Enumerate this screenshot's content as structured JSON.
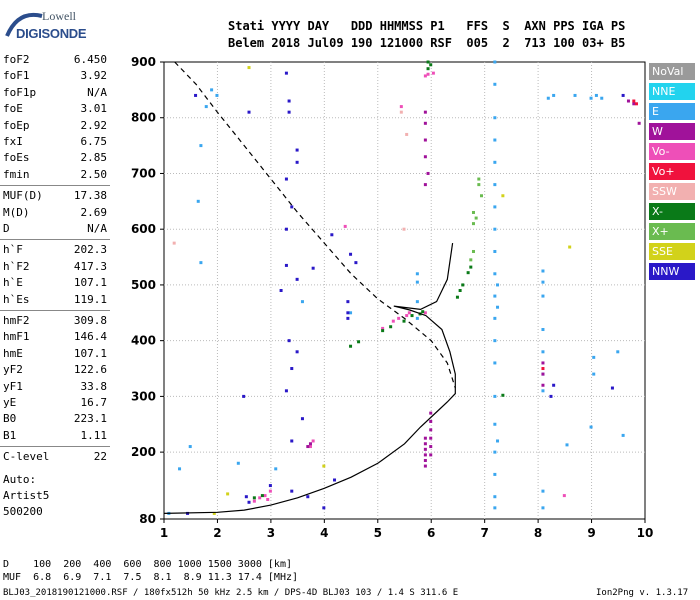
{
  "logo": {
    "top": "Lowell",
    "bottom": "DIGISONDE"
  },
  "header": {
    "line1": "Stati YYYY DAY   DDD HHMMSS P1   FFS  S  AXN PPS IGA PS",
    "line2": "Belem 2018 Jul09 190 121000 RSF  005  2  713 100 03+ B5"
  },
  "params": [
    {
      "label": "foF2",
      "value": "6.450"
    },
    {
      "label": "foF1",
      "value": "3.92"
    },
    {
      "label": "foF1p",
      "value": "N/A"
    },
    {
      "label": "foE",
      "value": "3.01"
    },
    {
      "label": "foEp",
      "value": "2.92"
    },
    {
      "label": "fxI",
      "value": "6.75"
    },
    {
      "label": "foEs",
      "value": "2.85"
    },
    {
      "label": "fmin",
      "value": "2.50"
    },
    {
      "label": "MUF(D)",
      "value": "17.38"
    },
    {
      "label": "M(D)",
      "value": "2.69"
    },
    {
      "label": "D",
      "value": "N/A"
    },
    {
      "label": "h`F",
      "value": "202.3"
    },
    {
      "label": "h`F2",
      "value": "417.3"
    },
    {
      "label": "h`E",
      "value": "107.1"
    },
    {
      "label": "h`Es",
      "value": "119.1"
    },
    {
      "label": "hmF2",
      "value": "309.8"
    },
    {
      "label": "hmF1",
      "value": "146.4"
    },
    {
      "label": "hmE",
      "value": "107.1"
    },
    {
      "label": "yF2",
      "value": "122.6"
    },
    {
      "label": "yF1",
      "value": "33.8"
    },
    {
      "label": "yE",
      "value": "16.7"
    },
    {
      "label": "B0",
      "value": "223.1"
    },
    {
      "label": "B1",
      "value": "1.11"
    },
    {
      "label": "C-level",
      "value": "22"
    }
  ],
  "auto": {
    "label": "Auto:",
    "system": "Artist5",
    "version": "500200"
  },
  "legend": [
    {
      "label": "NoVal",
      "color": "#9a9a9a"
    },
    {
      "label": "NNE",
      "color": "#22d3ee"
    },
    {
      "label": "E",
      "color": "#3aa6ef"
    },
    {
      "label": "W",
      "color": "#a0129a"
    },
    {
      "label": "Vo-",
      "color": "#ee4fb8"
    },
    {
      "label": "Vo+",
      "color": "#f0123d"
    },
    {
      "label": "SSW",
      "color": "#f2b0b0"
    },
    {
      "label": "X-",
      "color": "#0a7a18"
    },
    {
      "label": "X+",
      "color": "#6abb50"
    },
    {
      "label": "SSE",
      "color": "#d2d21a"
    },
    {
      "label": "NNW",
      "color": "#2a18c8"
    }
  ],
  "footer": {
    "d_row": "D    100  200  400  600  800 1000 1500 3000 [km]",
    "muf_row": "MUF  6.8  6.9  7.1  7.5  8.1  8.9 11.3 17.4 [MHz]",
    "file_line": "BLJ03_2018190121000.RSF / 180fx512h 50 kHz 2.5 km / DPS-4D BLJ03 103 / 1.4 S 311.6 E",
    "version": "Ion2Png v. 1.3.17"
  },
  "chart_data": {
    "type": "scatter",
    "title": "",
    "xlabel": "",
    "ylabel": "",
    "xlim": [
      1,
      10
    ],
    "ylim": [
      80,
      900
    ],
    "x_ticks": [
      1,
      2,
      3,
      4,
      5,
      6,
      7,
      8,
      9,
      10
    ],
    "y_ticks": [
      80,
      200,
      300,
      400,
      500,
      600,
      700,
      800,
      900
    ],
    "grid": true,
    "legend_position": "right",
    "ntrace": {
      "name": "",
      "style": "solid",
      "points": [
        [
          1.0,
          90
        ],
        [
          2.0,
          92
        ],
        [
          2.5,
          96
        ],
        [
          3.0,
          105
        ],
        [
          3.5,
          118
        ],
        [
          4.0,
          135
        ],
        [
          4.5,
          155
        ],
        [
          5.0,
          180
        ],
        [
          5.5,
          215
        ],
        [
          5.8,
          245
        ],
        [
          6.1,
          272
        ],
        [
          6.3,
          290
        ],
        [
          6.45,
          305
        ],
        [
          6.45,
          340
        ],
        [
          6.35,
          380
        ],
        [
          6.2,
          420
        ],
        [
          5.9,
          445
        ],
        [
          5.6,
          455
        ],
        [
          5.3,
          462
        ],
        [
          5.8,
          456
        ],
        [
          6.1,
          470
        ],
        [
          6.3,
          510
        ],
        [
          6.4,
          575
        ]
      ]
    },
    "profile": {
      "name": "",
      "style": "dashed",
      "points": [
        [
          1.2,
          900
        ],
        [
          1.6,
          860
        ],
        [
          2.0,
          810
        ],
        [
          2.5,
          750
        ],
        [
          3.0,
          690
        ],
        [
          3.5,
          630
        ],
        [
          4.0,
          575
        ],
        [
          4.5,
          520
        ],
        [
          5.0,
          475
        ],
        [
          5.5,
          440
        ],
        [
          6.0,
          400
        ],
        [
          6.3,
          360
        ],
        [
          6.45,
          315
        ]
      ]
    },
    "echoes": [
      {
        "series": "E",
        "points": [
          [
            1.8,
            820
          ],
          [
            1.9,
            850
          ],
          [
            2.0,
            840
          ],
          [
            1.7,
            750
          ],
          [
            1.65,
            650
          ],
          [
            1.7,
            540
          ],
          [
            3.6,
            470
          ],
          [
            4.5,
            450
          ],
          [
            5.75,
            520
          ],
          [
            5.75,
            505
          ],
          [
            5.75,
            470
          ],
          [
            5.75,
            440
          ],
          [
            7.2,
            900
          ],
          [
            7.2,
            860
          ],
          [
            7.2,
            800
          ],
          [
            7.2,
            760
          ],
          [
            7.2,
            720
          ],
          [
            7.2,
            680
          ],
          [
            7.2,
            640
          ],
          [
            7.2,
            600
          ],
          [
            7.2,
            560
          ],
          [
            7.2,
            520
          ],
          [
            7.2,
            480
          ],
          [
            7.2,
            440
          ],
          [
            7.2,
            400
          ],
          [
            7.2,
            360
          ],
          [
            7.2,
            300
          ],
          [
            7.2,
            250
          ],
          [
            7.2,
            200
          ],
          [
            7.2,
            160
          ],
          [
            7.2,
            120
          ],
          [
            7.2,
            100
          ],
          [
            7.25,
            500
          ],
          [
            7.25,
            460
          ],
          [
            7.25,
            220
          ],
          [
            8.1,
            525
          ],
          [
            8.1,
            505
          ],
          [
            8.1,
            480
          ],
          [
            8.1,
            420
          ],
          [
            8.1,
            380
          ],
          [
            8.1,
            340
          ],
          [
            8.1,
            310
          ],
          [
            8.1,
            130
          ],
          [
            8.1,
            100
          ],
          [
            8.2,
            835
          ],
          [
            8.3,
            840
          ],
          [
            8.7,
            840
          ],
          [
            9.0,
            835
          ],
          [
            9.1,
            840
          ],
          [
            9.2,
            835
          ],
          [
            9.05,
            370
          ],
          [
            9.05,
            340
          ],
          [
            9.0,
            245
          ],
          [
            8.55,
            213
          ],
          [
            9.5,
            380
          ],
          [
            9.6,
            230
          ],
          [
            2.4,
            180
          ],
          [
            3.1,
            170
          ],
          [
            1.1,
            90
          ],
          [
            1.3,
            170
          ],
          [
            1.5,
            210
          ]
        ]
      },
      {
        "series": "Vo-",
        "points": [
          [
            2.7,
            112
          ],
          [
            2.8,
            118
          ],
          [
            2.9,
            122
          ],
          [
            3.0,
            130
          ],
          [
            2.95,
            115
          ],
          [
            3.75,
            210
          ],
          [
            3.8,
            220
          ],
          [
            5.1,
            422
          ],
          [
            5.3,
            435
          ],
          [
            5.4,
            440
          ],
          [
            5.55,
            445
          ],
          [
            5.6,
            450
          ],
          [
            5.95,
            878
          ],
          [
            5.9,
            875
          ],
          [
            6.05,
            880
          ],
          [
            5.9,
            450
          ],
          [
            4.4,
            605
          ],
          [
            5.45,
            820
          ],
          [
            8.5,
            122
          ]
        ]
      },
      {
        "series": "W",
        "points": [
          [
            5.9,
            810
          ],
          [
            5.9,
            790
          ],
          [
            5.9,
            760
          ],
          [
            5.9,
            730
          ],
          [
            5.95,
            700
          ],
          [
            5.9,
            680
          ],
          [
            6.0,
            270
          ],
          [
            6.0,
            255
          ],
          [
            6.0,
            240
          ],
          [
            6.0,
            225
          ],
          [
            6.0,
            210
          ],
          [
            6.0,
            195
          ],
          [
            5.9,
            225
          ],
          [
            5.9,
            215
          ],
          [
            5.9,
            205
          ],
          [
            5.9,
            195
          ],
          [
            5.9,
            185
          ],
          [
            5.9,
            175
          ],
          [
            8.1,
            360
          ],
          [
            8.1,
            340
          ],
          [
            8.1,
            320
          ],
          [
            9.7,
            830
          ],
          [
            9.8,
            825
          ],
          [
            9.9,
            790
          ],
          [
            3.7,
            210
          ],
          [
            3.75,
            215
          ]
        ]
      },
      {
        "series": "Vo+",
        "points": [
          [
            8.1,
            350
          ],
          [
            9.8,
            830
          ],
          [
            9.85,
            825
          ]
        ]
      },
      {
        "series": "SSW",
        "points": [
          [
            5.45,
            810
          ],
          [
            1.2,
            575
          ],
          [
            5.55,
            770
          ],
          [
            5.5,
            600
          ]
        ]
      },
      {
        "series": "X-",
        "points": [
          [
            5.95,
            900
          ],
          [
            6.0,
            895
          ],
          [
            5.95,
            888
          ],
          [
            4.5,
            390
          ],
          [
            4.65,
            398
          ],
          [
            5.1,
            418
          ],
          [
            5.25,
            425
          ],
          [
            5.5,
            435
          ],
          [
            5.65,
            445
          ],
          [
            5.8,
            448
          ],
          [
            5.85,
            452
          ],
          [
            6.5,
            478
          ],
          [
            6.55,
            490
          ],
          [
            6.6,
            500
          ],
          [
            6.7,
            522
          ],
          [
            6.75,
            532
          ],
          [
            7.35,
            302
          ],
          [
            2.85,
            122
          ],
          [
            2.7,
            118
          ]
        ]
      },
      {
        "series": "X+",
        "points": [
          [
            6.75,
            545
          ],
          [
            6.8,
            560
          ],
          [
            6.8,
            610
          ],
          [
            6.85,
            620
          ],
          [
            6.8,
            630
          ],
          [
            6.9,
            680
          ],
          [
            6.9,
            690
          ],
          [
            6.95,
            660
          ]
        ]
      },
      {
        "series": "SSE",
        "points": [
          [
            1.95,
            90
          ],
          [
            2.6,
            890
          ],
          [
            2.2,
            125
          ],
          [
            4.0,
            175
          ],
          [
            8.6,
            568
          ],
          [
            7.35,
            660
          ]
        ]
      },
      {
        "series": "NNW",
        "points": [
          [
            3.3,
            690
          ],
          [
            3.5,
            742
          ],
          [
            3.5,
            720
          ],
          [
            3.4,
            640
          ],
          [
            3.3,
            600
          ],
          [
            3.3,
            535
          ],
          [
            3.5,
            510
          ],
          [
            3.8,
            530
          ],
          [
            4.15,
            590
          ],
          [
            4.5,
            555
          ],
          [
            4.6,
            540
          ],
          [
            4.45,
            450
          ],
          [
            4.45,
            470
          ],
          [
            4.45,
            440
          ],
          [
            3.35,
            400
          ],
          [
            3.4,
            350
          ],
          [
            3.3,
            310
          ],
          [
            3.5,
            380
          ],
          [
            3.6,
            260
          ],
          [
            3.2,
            490
          ],
          [
            3.3,
            880
          ],
          [
            3.35,
            830
          ],
          [
            3.35,
            810
          ],
          [
            2.5,
            300
          ],
          [
            2.55,
            120
          ],
          [
            2.6,
            110
          ],
          [
            3.0,
            140
          ],
          [
            3.4,
            130
          ],
          [
            3.7,
            120
          ],
          [
            4.0,
            100
          ],
          [
            4.2,
            150
          ],
          [
            8.25,
            300
          ],
          [
            8.3,
            320
          ],
          [
            9.4,
            315
          ],
          [
            9.6,
            840
          ],
          [
            2.6,
            810
          ],
          [
            1.6,
            840
          ],
          [
            1.45,
            90
          ],
          [
            3.4,
            220
          ]
        ]
      }
    ]
  }
}
